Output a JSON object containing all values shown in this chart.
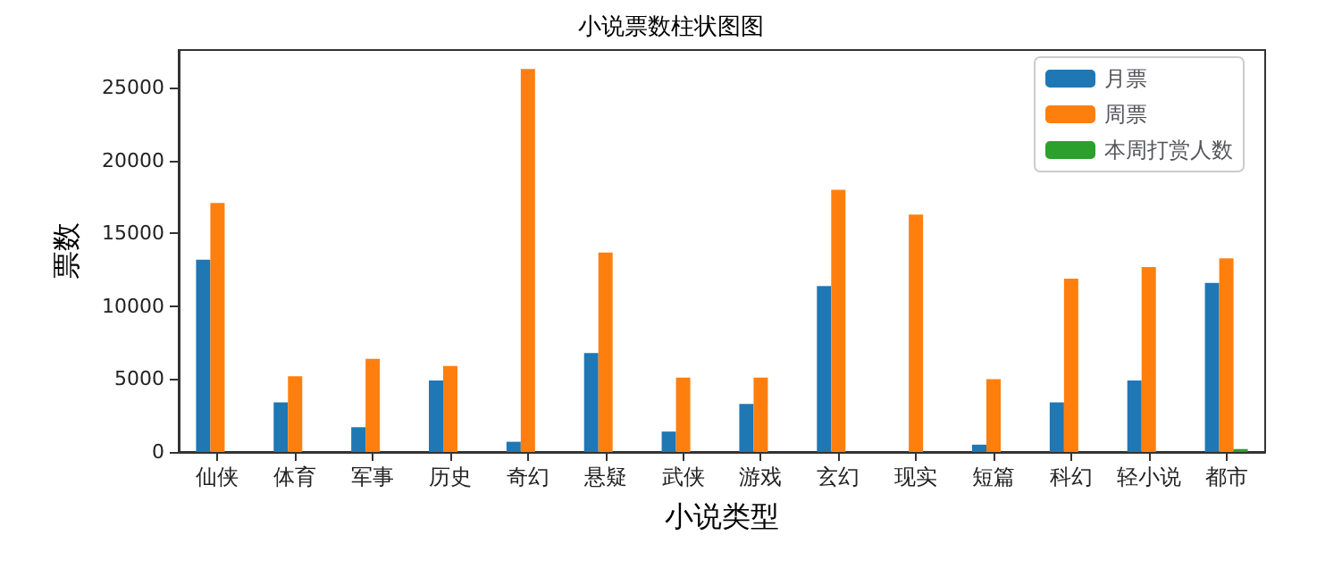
{
  "chart_data": {
    "type": "bar",
    "title": "小说票数柱状图图",
    "xlabel": "小说类型",
    "ylabel": "票数",
    "categories": [
      "仙侠",
      "体育",
      "军事",
      "历史",
      "奇幻",
      "悬疑",
      "武侠",
      "游戏",
      "玄幻",
      "现实",
      "短篇",
      "科幻",
      "轻小说",
      "都市"
    ],
    "series": [
      {
        "name": "月票",
        "color": "#1f77b4",
        "values": [
          13200,
          3400,
          1700,
          4900,
          700,
          6800,
          1400,
          3300,
          11400,
          0,
          500,
          3400,
          4900,
          11600
        ]
      },
      {
        "name": "周票",
        "color": "#ff7f0e",
        "values": [
          17100,
          5200,
          6400,
          5900,
          26300,
          13700,
          5100,
          5100,
          18000,
          16300,
          5000,
          11900,
          12700,
          13300
        ]
      },
      {
        "name": "本周打赏人数",
        "color": "#2ca02c",
        "values": [
          0,
          0,
          0,
          0,
          0,
          0,
          0,
          0,
          0,
          0,
          0,
          0,
          0,
          200
        ]
      }
    ],
    "ylim": [
      0,
      27600
    ],
    "yticks": [
      0,
      5000,
      10000,
      15000,
      20000,
      25000
    ],
    "grid": false,
    "legend": "top right"
  }
}
